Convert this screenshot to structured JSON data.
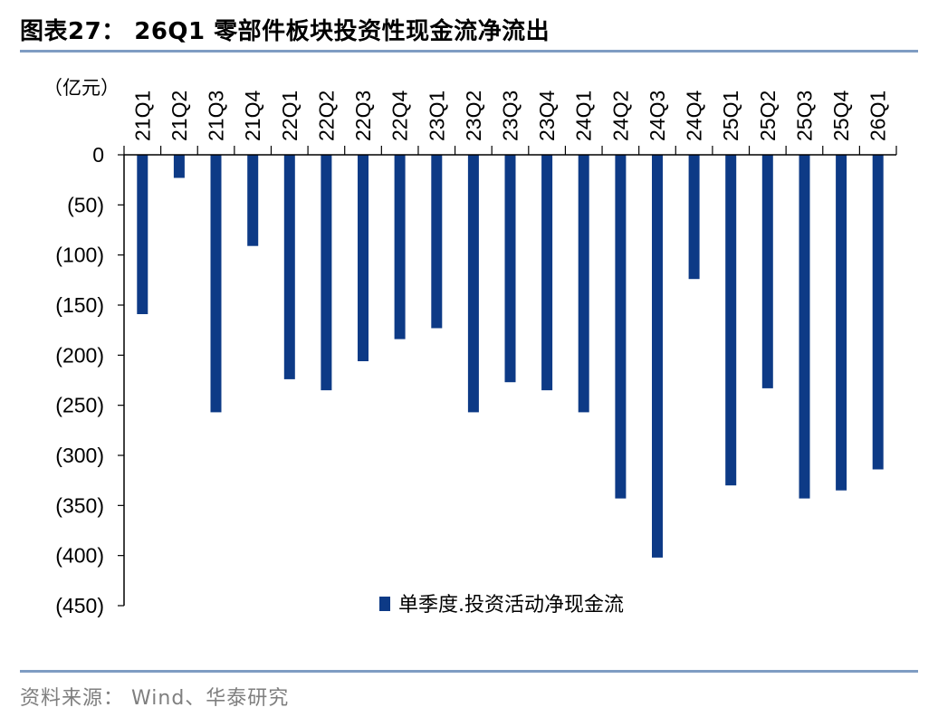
{
  "title": "图表27： 26Q1 零部件板块投资性现金流净流出",
  "source": "资料来源： Wind、华泰研究",
  "colors": {
    "bar": "#0d3a86",
    "rule": "#7f9cc3"
  },
  "chart_data": {
    "type": "bar",
    "title": "",
    "unit": "（亿元）",
    "xlabel": "",
    "ylabel": "",
    "categories": [
      "21Q1",
      "21Q2",
      "21Q3",
      "21Q4",
      "22Q1",
      "22Q2",
      "22Q3",
      "22Q4",
      "23Q1",
      "23Q2",
      "23Q3",
      "23Q4",
      "24Q1",
      "24Q2",
      "24Q3",
      "24Q4",
      "25Q1",
      "25Q2",
      "25Q3",
      "25Q4",
      "26Q1"
    ],
    "series": [
      {
        "name": "单季度.投资活动净现金流",
        "values": [
          -159,
          -23,
          -257,
          -91,
          -224,
          -235,
          -206,
          -184,
          -173,
          -257,
          -227,
          -235,
          -257,
          -343,
          -402,
          -124,
          -330,
          -233,
          -343,
          -335,
          -314
        ]
      }
    ],
    "ylim": [
      -450,
      0
    ],
    "yticks": [
      0,
      -50,
      -100,
      -150,
      -200,
      -250,
      -300,
      -350,
      -400,
      -450
    ],
    "ytick_labels": [
      "0",
      "(50)",
      "(100)",
      "(150)",
      "(200)",
      "(250)",
      "(300)",
      "(350)",
      "(400)",
      "(450)"
    ],
    "legend_position": "bottom-right",
    "grid": false
  }
}
